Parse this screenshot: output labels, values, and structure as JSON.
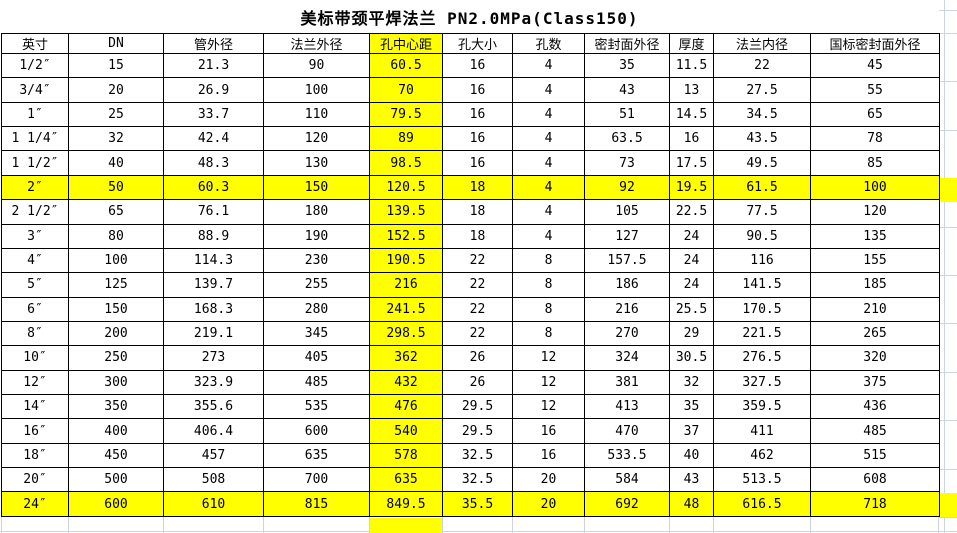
{
  "title": "美标带颈平焊法兰 PN2.0MPa(Class150)",
  "highlight_color": "#ffff00",
  "table": {
    "columns": [
      "英寸",
      "DN",
      "管外径",
      "法兰外径",
      "孔中心距",
      "孔大小",
      "孔数",
      "密封面外径",
      "厚度",
      "法兰内径",
      "国标密封面外径"
    ],
    "highlight_column_index": 4,
    "highlight_row_indices": [
      5,
      18
    ],
    "rows": [
      [
        "1/2″",
        "15",
        "21.3",
        "90",
        "60.5",
        "16",
        "4",
        "35",
        "11.5",
        "22",
        "45"
      ],
      [
        "3/4″",
        "20",
        "26.9",
        "100",
        "70",
        "16",
        "4",
        "43",
        "13",
        "27.5",
        "55"
      ],
      [
        "1″",
        "25",
        "33.7",
        "110",
        "79.5",
        "16",
        "4",
        "51",
        "14.5",
        "34.5",
        "65"
      ],
      [
        "1 1/4″",
        "32",
        "42.4",
        "120",
        "89",
        "16",
        "4",
        "63.5",
        "16",
        "43.5",
        "78"
      ],
      [
        "1 1/2″",
        "40",
        "48.3",
        "130",
        "98.5",
        "16",
        "4",
        "73",
        "17.5",
        "49.5",
        "85"
      ],
      [
        "2″",
        "50",
        "60.3",
        "150",
        "120.5",
        "18",
        "4",
        "92",
        "19.5",
        "61.5",
        "100"
      ],
      [
        "2 1/2″",
        "65",
        "76.1",
        "180",
        "139.5",
        "18",
        "4",
        "105",
        "22.5",
        "77.5",
        "120"
      ],
      [
        "3″",
        "80",
        "88.9",
        "190",
        "152.5",
        "18",
        "4",
        "127",
        "24",
        "90.5",
        "135"
      ],
      [
        "4″",
        "100",
        "114.3",
        "230",
        "190.5",
        "22",
        "8",
        "157.5",
        "24",
        "116",
        "155"
      ],
      [
        "5″",
        "125",
        "139.7",
        "255",
        "216",
        "22",
        "8",
        "186",
        "24",
        "141.5",
        "185"
      ],
      [
        "6″",
        "150",
        "168.3",
        "280",
        "241.5",
        "22",
        "8",
        "216",
        "25.5",
        "170.5",
        "210"
      ],
      [
        "8″",
        "200",
        "219.1",
        "345",
        "298.5",
        "22",
        "8",
        "270",
        "29",
        "221.5",
        "265"
      ],
      [
        "10″",
        "250",
        "273",
        "405",
        "362",
        "26",
        "12",
        "324",
        "30.5",
        "276.5",
        "320"
      ],
      [
        "12″",
        "300",
        "323.9",
        "485",
        "432",
        "26",
        "12",
        "381",
        "32",
        "327.5",
        "375"
      ],
      [
        "14″",
        "350",
        "355.6",
        "535",
        "476",
        "29.5",
        "12",
        "413",
        "35",
        "359.5",
        "436"
      ],
      [
        "16″",
        "400",
        "406.4",
        "600",
        "540",
        "29.5",
        "16",
        "470",
        "37",
        "411",
        "485"
      ],
      [
        "18″",
        "450",
        "457",
        "635",
        "578",
        "32.5",
        "16",
        "533.5",
        "40",
        "462",
        "515"
      ],
      [
        "20″",
        "500",
        "508",
        "700",
        "635",
        "32.5",
        "20",
        "584",
        "43",
        "513.5",
        "608"
      ],
      [
        "24″",
        "600",
        "610",
        "815",
        "849.5",
        "35.5",
        "20",
        "692",
        "48",
        "616.5",
        "718"
      ]
    ]
  }
}
